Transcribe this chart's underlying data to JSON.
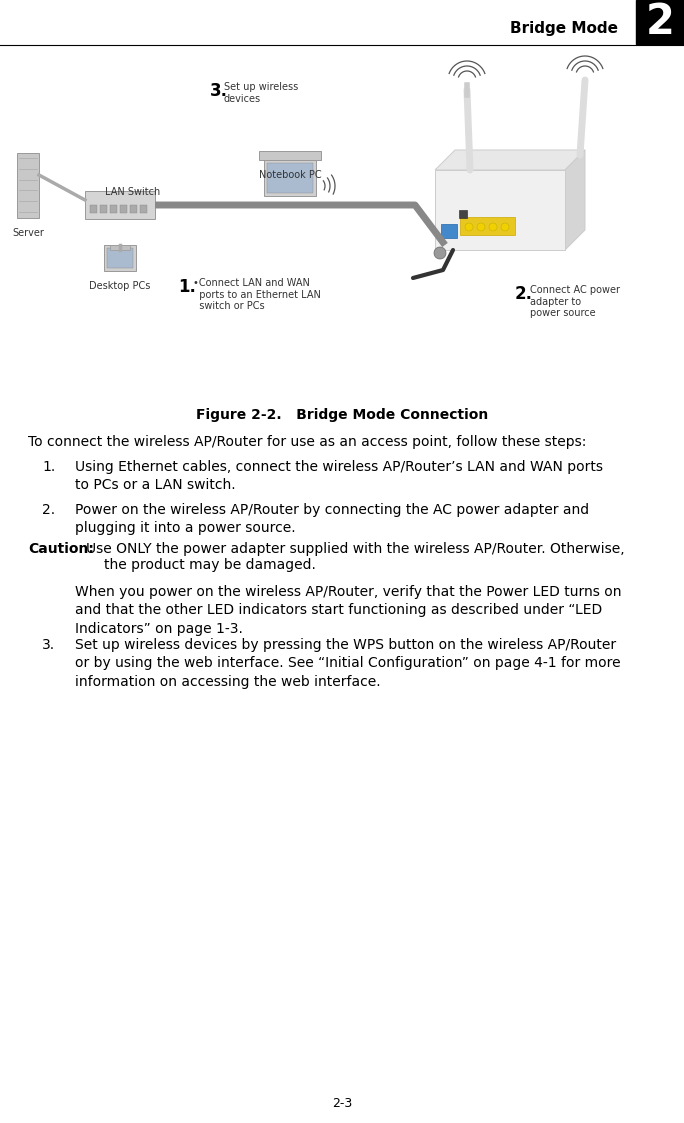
{
  "title_header": "Bridge Mode",
  "chapter_num": "2",
  "figure_caption": "Figure 2-2.   Bridge Mode Connection",
  "page_number": "2-3",
  "bg_color": "#ffffff",
  "intro_text": "To connect the wireless AP/Router for use as an access point, follow these steps:",
  "step1_num": "1.",
  "step1_text": "Using Ethernet cables, connect the wireless AP/Router’s LAN and WAN ports\nto PCs or a LAN switch.",
  "step2_num": "2.",
  "step2_text": "Power on the wireless AP/Router by connecting the AC power adapter and\nplugging it into a power source.",
  "caution_label": "Caution:",
  "caution_text": " Use ONLY the power adapter supplied with the wireless AP/Router. Otherwise,\n       the product may be damaged.",
  "when_text": "When you power on the wireless AP/Router, verify that the Power LED turns on\nand that the other LED indicators start functioning as described under “LED\nIndicators” on page 1-3.",
  "step3_num": "3.",
  "step3_text": "Set up wireless devices by pressing the WPS button on the wireless AP/Router\nor by using the web interface. See “Initial Configuration” on page 4-1 for more\ninformation on accessing the web interface.",
  "diag_lan_switch": "LAN Switch",
  "diag_server": "Server",
  "diag_desktop": "Desktop PCs",
  "diag_notebook": "Notebook PC",
  "diag_step1_num": "1.",
  "diag_step1_txt": "•Connect LAN and WAN\n  ports to an Ethernet LAN\n  switch or PCs",
  "diag_step2_num": "2.",
  "diag_step2_txt": "Connect AC power\nadapter to\npower source",
  "diag_step3_num": "3.",
  "diag_step3_txt": "Set up wireless\ndevices"
}
